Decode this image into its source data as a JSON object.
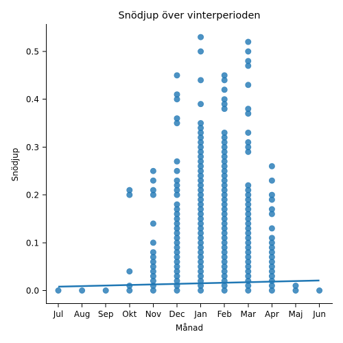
{
  "chart_data": {
    "type": "scatter",
    "title": "Snödjup över vinterperioden",
    "xlabel": "Månad",
    "ylabel": "Snödjup",
    "categories": [
      "Jul",
      "Aug",
      "Sep",
      "Okt",
      "Nov",
      "Dec",
      "Jan",
      "Feb",
      "Mar",
      "Apr",
      "Maj",
      "Jun"
    ],
    "ylim": [
      -0.03,
      0.555
    ],
    "yticks": [
      "0.0",
      "0.1",
      "0.2",
      "0.3",
      "0.4",
      "0.5"
    ],
    "ytick_values": [
      0,
      0.1,
      0.2,
      0.3,
      0.4,
      0.5
    ],
    "grid": false,
    "point_color": "#1f77b4",
    "series": [
      {
        "values": [
          [
            0
          ],
          [
            0
          ],
          [
            0
          ],
          [
            0,
            0.01,
            0.04,
            0.2,
            0.21
          ],
          [
            0,
            0.01,
            0.02,
            0.03,
            0.04,
            0.05,
            0.06,
            0.07,
            0.08,
            0.1,
            0.14,
            0.2,
            0.21,
            0.23,
            0.25
          ],
          [
            0,
            0.01,
            0.02,
            0.03,
            0.04,
            0.05,
            0.06,
            0.07,
            0.08,
            0.09,
            0.1,
            0.11,
            0.12,
            0.13,
            0.14,
            0.15,
            0.16,
            0.17,
            0.18,
            0.2,
            0.21,
            0.22,
            0.23,
            0.25,
            0.27,
            0.35,
            0.36,
            0.4,
            0.41,
            0.45
          ],
          [
            0,
            0.01,
            0.02,
            0.03,
            0.04,
            0.05,
            0.06,
            0.07,
            0.08,
            0.09,
            0.1,
            0.11,
            0.12,
            0.13,
            0.14,
            0.15,
            0.16,
            0.17,
            0.18,
            0.19,
            0.2,
            0.21,
            0.22,
            0.23,
            0.24,
            0.25,
            0.26,
            0.27,
            0.28,
            0.29,
            0.3,
            0.31,
            0.32,
            0.33,
            0.34,
            0.35,
            0.39,
            0.44,
            0.5,
            0.53
          ],
          [
            0,
            0.01,
            0.02,
            0.03,
            0.04,
            0.05,
            0.06,
            0.07,
            0.08,
            0.09,
            0.1,
            0.11,
            0.12,
            0.13,
            0.14,
            0.15,
            0.16,
            0.17,
            0.18,
            0.19,
            0.2,
            0.21,
            0.22,
            0.23,
            0.24,
            0.25,
            0.26,
            0.27,
            0.28,
            0.29,
            0.3,
            0.31,
            0.32,
            0.33,
            0.38,
            0.39,
            0.4,
            0.42,
            0.44,
            0.45
          ],
          [
            0,
            0.01,
            0.02,
            0.03,
            0.04,
            0.05,
            0.06,
            0.07,
            0.08,
            0.09,
            0.1,
            0.11,
            0.12,
            0.13,
            0.14,
            0.15,
            0.16,
            0.17,
            0.18,
            0.19,
            0.2,
            0.21,
            0.22,
            0.29,
            0.3,
            0.31,
            0.33,
            0.37,
            0.38,
            0.43,
            0.47,
            0.48,
            0.5,
            0.52
          ],
          [
            0,
            0.01,
            0.02,
            0.03,
            0.04,
            0.05,
            0.06,
            0.07,
            0.08,
            0.09,
            0.1,
            0.11,
            0.13,
            0.16,
            0.17,
            0.19,
            0.2,
            0.23,
            0.26
          ],
          [
            0,
            0.01
          ],
          [
            0
          ]
        ]
      }
    ],
    "regression": {
      "start": 0.008,
      "end": 0.021
    }
  }
}
